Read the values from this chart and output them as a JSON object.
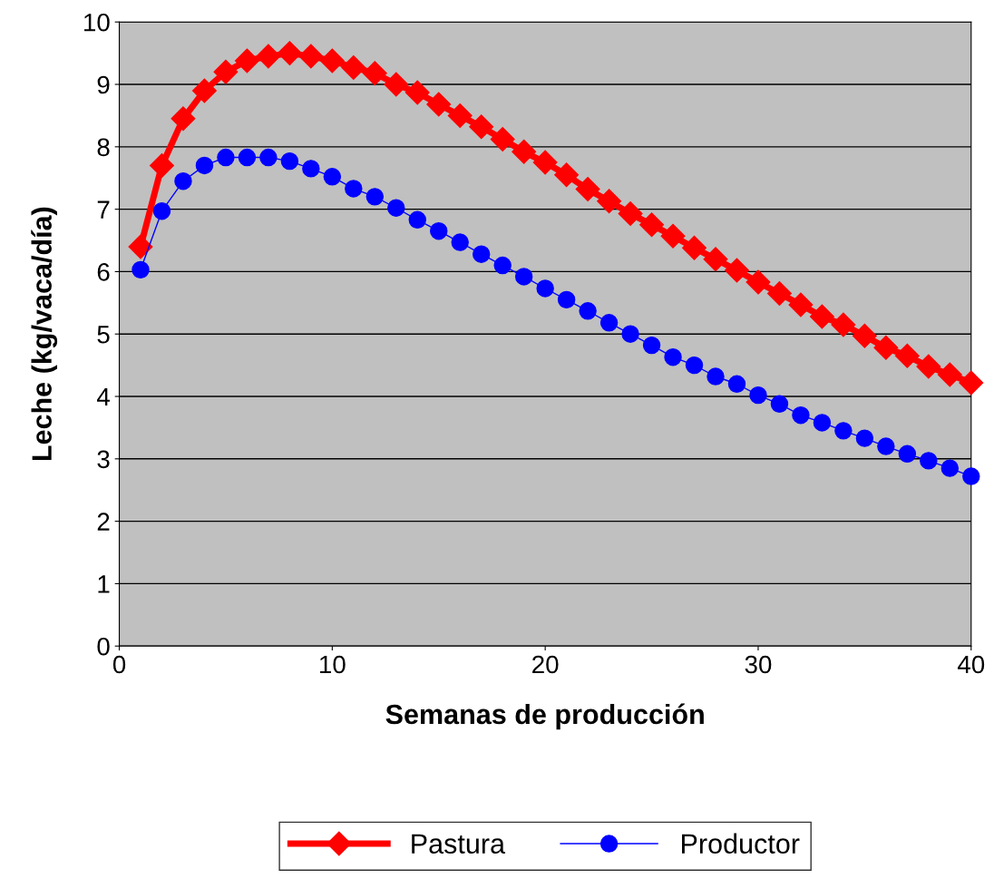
{
  "chart_data": {
    "type": "line",
    "xlabel": "Semanas de producción",
    "ylabel": "Leche (kg/vaca/día)",
    "x": [
      1,
      2,
      3,
      4,
      5,
      6,
      7,
      8,
      9,
      10,
      11,
      12,
      13,
      14,
      15,
      16,
      17,
      18,
      19,
      20,
      21,
      22,
      23,
      24,
      25,
      26,
      27,
      28,
      29,
      30,
      31,
      32,
      33,
      34,
      35,
      36,
      37,
      38,
      39,
      40
    ],
    "series": [
      {
        "name": "Pastura",
        "color": "#ff0000",
        "marker": "diamond",
        "values": [
          6.4,
          7.7,
          8.45,
          8.9,
          9.2,
          9.38,
          9.45,
          9.5,
          9.45,
          9.38,
          9.27,
          9.18,
          9.0,
          8.87,
          8.68,
          8.5,
          8.32,
          8.12,
          7.92,
          7.75,
          7.55,
          7.32,
          7.13,
          6.93,
          6.75,
          6.57,
          6.38,
          6.2,
          6.02,
          5.83,
          5.65,
          5.47,
          5.28,
          5.15,
          4.97,
          4.78,
          4.65,
          4.48,
          4.35,
          4.22
        ]
      },
      {
        "name": "Productor",
        "color": "#0000ff",
        "marker": "circle",
        "values": [
          6.03,
          6.97,
          7.45,
          7.7,
          7.83,
          7.83,
          7.83,
          7.77,
          7.65,
          7.52,
          7.33,
          7.2,
          7.02,
          6.83,
          6.65,
          6.47,
          6.28,
          6.1,
          5.92,
          5.73,
          5.55,
          5.37,
          5.18,
          5.0,
          4.82,
          4.63,
          4.5,
          4.32,
          4.2,
          4.02,
          3.88,
          3.7,
          3.58,
          3.45,
          3.33,
          3.2,
          3.08,
          2.97,
          2.85,
          2.72
        ]
      }
    ],
    "xlim": [
      0,
      40
    ],
    "xticks": [
      0,
      10,
      20,
      30,
      40
    ],
    "ylim": [
      0,
      10
    ],
    "yticks": [
      0,
      1,
      2,
      3,
      4,
      5,
      6,
      7,
      8,
      9,
      10
    ],
    "grid": "y",
    "legend": "bottom",
    "line_style": "solid"
  }
}
